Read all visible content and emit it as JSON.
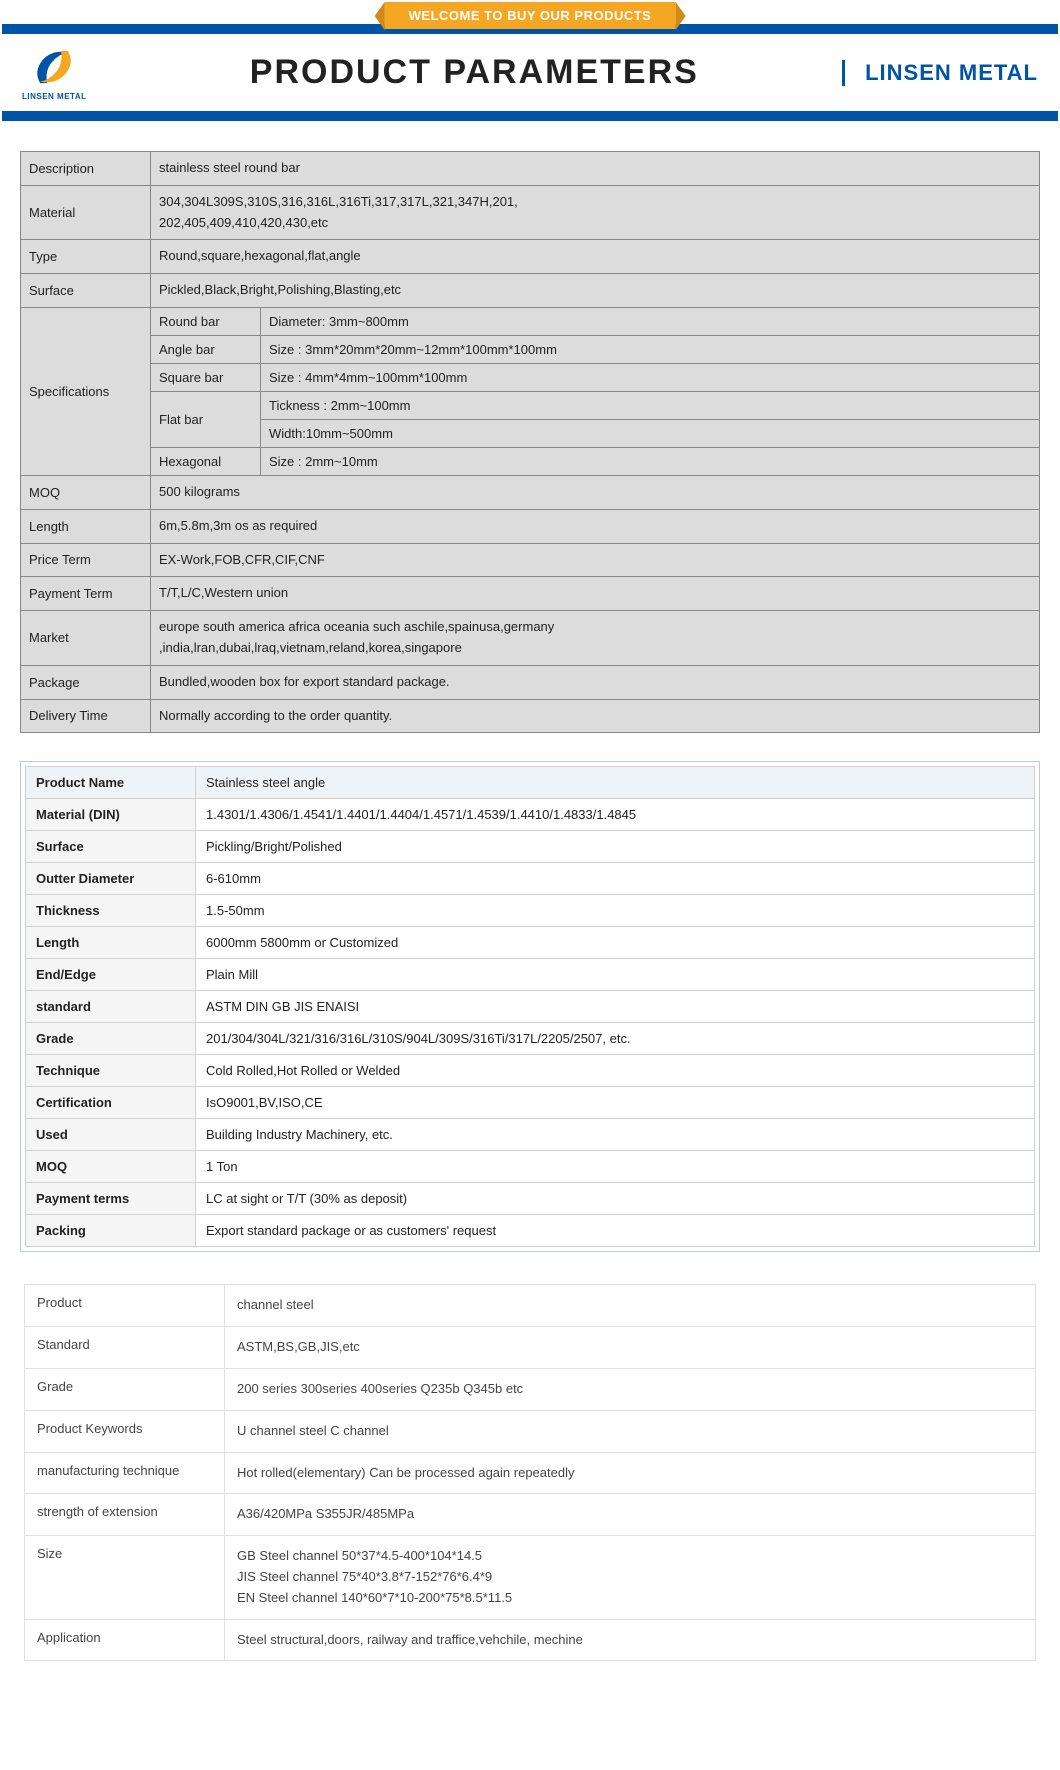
{
  "header": {
    "welcome": "WELCOME TO BUY OUR PRODUCTS",
    "title": "PRODUCT PARAMETERS",
    "brand": "LINSEN METAL",
    "logo_caption": "LINSEN METAL",
    "colors": {
      "primary": "#0054a6",
      "accent": "#f5a623",
      "text": "#222222",
      "table1_bg": "#dcdcdc",
      "table1_border": "#888888",
      "table2_border": "#d0d0d0",
      "table2_key_bg": "#f5f5f5",
      "table2_head_bg": "#eef3f8",
      "table3_border": "#e0e0e0"
    }
  },
  "table1": {
    "rows": [
      {
        "k": "Description",
        "v": "stainless steel round bar"
      },
      {
        "k": "Material",
        "v": "304,304L309S,310S,316,316L,316Ti,317,317L,321,347H,201,\n202,405,409,410,420,430,etc"
      },
      {
        "k": "Type",
        "v": "Round,square,hexagonal,flat,angle"
      },
      {
        "k": "Surface",
        "v": "Pickled,Black,Bright,Polishing,Blasting,etc"
      }
    ],
    "specs": {
      "label": "Specifications",
      "items": [
        {
          "k": "Round bar",
          "v": "Diameter: 3mm~800mm"
        },
        {
          "k": "Angle bar",
          "v": "Size : 3mm*20mm*20mm~12mm*100mm*100mm"
        },
        {
          "k": "Square bar",
          "v": "Size : 4mm*4mm~100mm*100mm"
        },
        {
          "k": "Flat bar",
          "v": "Tickness : 2mm~100mm",
          "v2": "Width:10mm~500mm"
        },
        {
          "k": "Hexagonal",
          "v": "Size : 2mm~10mm"
        }
      ]
    },
    "rows2": [
      {
        "k": "MOQ",
        "v": "500 kilograms"
      },
      {
        "k": "Length",
        "v": "6m,5.8m,3m os as required"
      },
      {
        "k": "Price Term",
        "v": "EX-Work,FOB,CFR,CIF,CNF"
      },
      {
        "k": "Payment Term",
        "v": "T/T,L/C,Western union"
      },
      {
        "k": "Market",
        "v": "europe south america africa oceania such aschile,spainusa,germany\n,india,lran,dubai,lraq,vietnam,reland,korea,singapore"
      },
      {
        "k": "Package",
        "v": "Bundled,wooden box for export standard package."
      },
      {
        "k": "Delivery Time",
        "v": "Normally according to the order quantity."
      }
    ]
  },
  "table2": {
    "rows": [
      {
        "k": "Product Name",
        "v": "Stainless steel angle"
      },
      {
        "k": "Material (DIN)",
        "v": "1.4301/1.4306/1.4541/1.4401/1.4404/1.4571/1.4539/1.4410/1.4833/1.4845"
      },
      {
        "k": "Surface",
        "v": "Pickling/Bright/Polished"
      },
      {
        "k": "Outter Diameter",
        "v": "6-610mm"
      },
      {
        "k": "Thickness",
        "v": "1.5-50mm"
      },
      {
        "k": "Length",
        "v": "6000mm 5800mm or Customized"
      },
      {
        "k": "End/Edge",
        "v": "Plain Mill"
      },
      {
        "k": "standard",
        "v": "ASTM DIN GB JIS ENAISI"
      },
      {
        "k": "Grade",
        "v": "201/304/304L/321/316/316L/310S/904L/309S/316Ti/317L/2205/2507, etc."
      },
      {
        "k": "Technique",
        "v": "Cold Rolled,Hot Rolled or Welded"
      },
      {
        "k": "Certification",
        "v": "IsO9001,BV,ISO,CE"
      },
      {
        "k": "Used",
        "v": "Building Industry Machinery, etc."
      },
      {
        "k": "MOQ",
        "v": "1 Ton"
      },
      {
        "k": "Payment terms",
        "v": "LC at sight or T/T (30% as deposit)"
      },
      {
        "k": "Packing",
        "v": "Export standard package or as customers' request"
      }
    ]
  },
  "table3": {
    "rows": [
      {
        "k": "Product",
        "v": "channel steel"
      },
      {
        "k": "Standard",
        "v": "ASTM,BS,GB,JIS,etc"
      },
      {
        "k": "Grade",
        "v": "200 series 300series 400series Q235b Q345b etc"
      },
      {
        "k": "Product Keywords",
        "v": "U channel steel C channel"
      },
      {
        "k": "manufacturing technique",
        "v": "Hot rolled(elementary) Can be processed again repeatedly"
      },
      {
        "k": "strength of extension",
        "v": "A36/420MPa S355JR/485MPa"
      },
      {
        "k": "Size",
        "v": "GB Steel channel 50*37*4.5-400*104*14.5\nJIS Steel channel 75*40*3.8*7-152*76*6.4*9\nEN Steel channel 140*60*7*10-200*75*8.5*11.5"
      },
      {
        "k": "Application",
        "v": "Steel structural,doors, railway and traffice,vehchile, mechine"
      }
    ]
  }
}
